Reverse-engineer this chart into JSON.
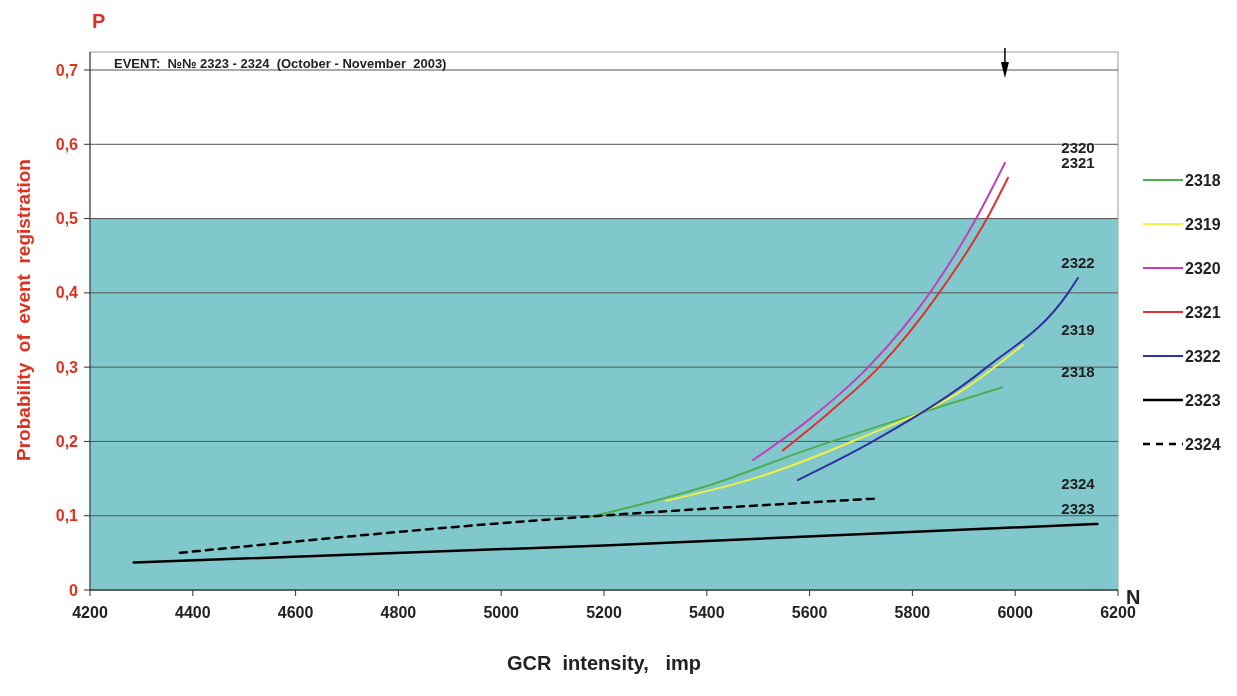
{
  "chart_data": {
    "type": "line",
    "xlabel": "GCR  intensity,   imp",
    "ylabel": "Probability  of  event  registration",
    "xlim": [
      4200,
      6200
    ],
    "xticks": [
      4200,
      4400,
      4600,
      4800,
      5000,
      5200,
      5400,
      5600,
      5800,
      6000,
      6200
    ],
    "ylim": [
      0,
      0.7
    ],
    "yticks": [
      0,
      {
        "value": 0.1,
        "label": "0,1"
      },
      {
        "value": 0.2,
        "label": "0,2"
      },
      {
        "value": 0.3,
        "label": "0,3"
      },
      {
        "value": 0.4,
        "label": "0,4"
      },
      {
        "value": 0.5,
        "label": "0,5"
      },
      {
        "value": 0.6,
        "label": "0,6"
      },
      {
        "value": 0.7,
        "label": "0,7"
      }
    ],
    "grid": "y",
    "legend": "right",
    "bands": [
      {
        "axis": "y",
        "from": 0,
        "to": 0.5,
        "color": "#80c8cc"
      }
    ],
    "series": [
      {
        "name": "2318",
        "color": "#4caf50",
        "x": [
          5170,
          5400,
          5600,
          5800,
          5975
        ],
        "values": [
          0.098,
          0.14,
          0.19,
          0.235,
          0.273
        ]
      },
      {
        "name": "2319",
        "color": "#f0f040",
        "x": [
          5320,
          5500,
          5700,
          5900,
          6015
        ],
        "values": [
          0.12,
          0.152,
          0.205,
          0.27,
          0.33
        ]
      },
      {
        "name": "2320",
        "color": "#c040c0",
        "x": [
          5490,
          5600,
          5714,
          5834,
          5924,
          5980
        ],
        "values": [
          0.175,
          0.23,
          0.3,
          0.4,
          0.5,
          0.575
        ]
      },
      {
        "name": "2321",
        "color": "#e03030",
        "x": [
          5548,
          5640,
          5735,
          5852,
          5945,
          5986
        ],
        "values": [
          0.188,
          0.24,
          0.3,
          0.4,
          0.5,
          0.555
        ]
      },
      {
        "name": "2322",
        "color": "#3030a0",
        "x": [
          5577,
          5723,
          5945,
          6103,
          6122
        ],
        "values": [
          0.148,
          0.2,
          0.3,
          0.4,
          0.42
        ]
      },
      {
        "name": "2323",
        "color": "#000000",
        "x": [
          4285,
          5200,
          6160
        ],
        "values": [
          0.037,
          0.06,
          0.089
        ]
      },
      {
        "name": "2324",
        "color": "#000000",
        "line_style": "dashed",
        "x": [
          4375,
          5000,
          5725
        ],
        "values": [
          0.05,
          0.09,
          0.123
        ]
      }
    ],
    "annotations": [
      "EVENT:  №№ 2323 - 2324  (October - November  2003)",
      "P",
      "N"
    ]
  }
}
